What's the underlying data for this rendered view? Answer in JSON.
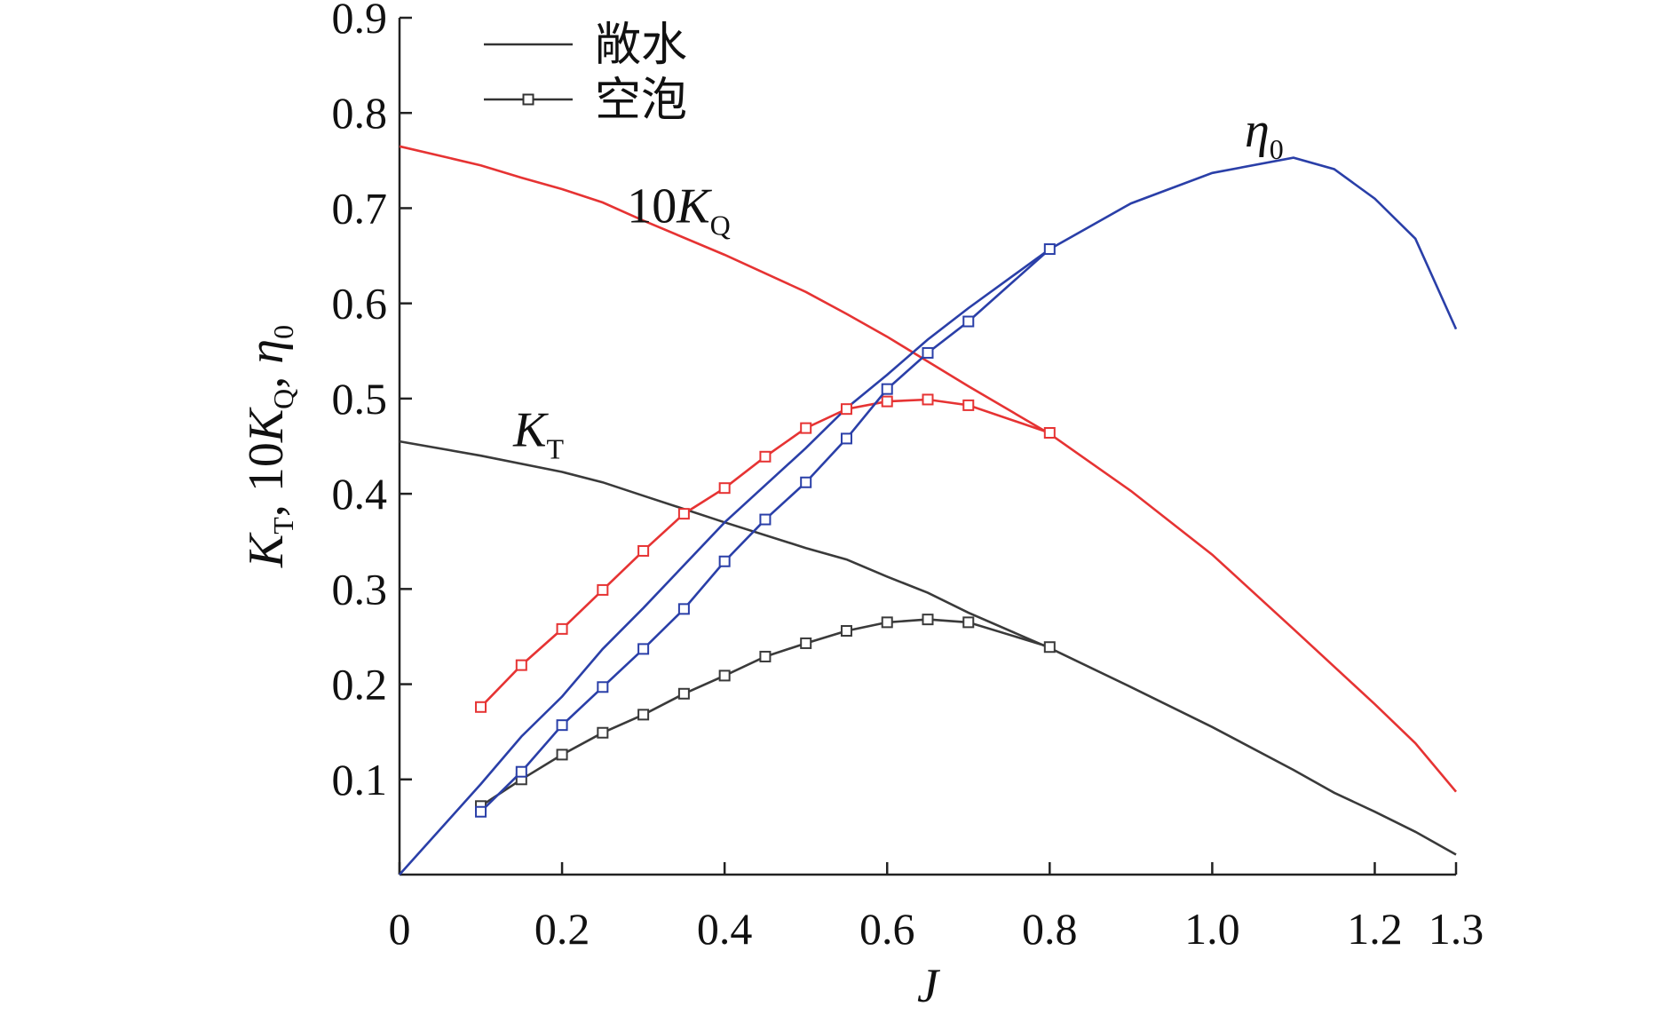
{
  "chart_data": {
    "type": "line",
    "xlabel": "J",
    "ylabel": {
      "parts": [
        "K",
        "T",
        ", 10",
        "K",
        "Q",
        ", ",
        "η",
        "0"
      ]
    },
    "xlim": [
      0,
      1.3
    ],
    "ylim": [
      0,
      0.9
    ],
    "x_ticks": [
      {
        "value": 0,
        "label": "0"
      },
      {
        "value": 0.2,
        "label": "0.2"
      },
      {
        "value": 0.4,
        "label": "0.4"
      },
      {
        "value": 0.6,
        "label": "0.6"
      },
      {
        "value": 0.8,
        "label": "0.8"
      },
      {
        "value": 1.0,
        "label": "1.0"
      },
      {
        "value": 1.2,
        "label": "1.2"
      },
      {
        "value": 1.3,
        "label": "1.3"
      }
    ],
    "y_ticks": [
      {
        "value": 0.1,
        "label": "0.1"
      },
      {
        "value": 0.2,
        "label": "0.2"
      },
      {
        "value": 0.3,
        "label": "0.3"
      },
      {
        "value": 0.4,
        "label": "0.4"
      },
      {
        "value": 0.5,
        "label": "0.5"
      },
      {
        "value": 0.6,
        "label": "0.6"
      },
      {
        "value": 0.7,
        "label": "0.7"
      },
      {
        "value": 0.8,
        "label": "0.8"
      },
      {
        "value": 0.9,
        "label": "0.9"
      }
    ],
    "grid": false,
    "legend": {
      "position": "top-left",
      "entries": [
        {
          "label": "敞水",
          "marker": "none",
          "color": "#333333"
        },
        {
          "label": "空泡",
          "marker": "square",
          "color": "#333333"
        }
      ]
    },
    "annotations": [
      {
        "id": "eta0",
        "parts": [
          "η",
          "0"
        ],
        "x": 1.04,
        "y": 0.765
      },
      {
        "id": "kq",
        "parts": [
          "10",
          "K",
          "Q"
        ],
        "x": 0.28,
        "y": 0.685
      },
      {
        "id": "kt",
        "parts": [
          "K",
          "T"
        ],
        "x": 0.14,
        "y": 0.45
      }
    ],
    "series": [
      {
        "key": "kt_open",
        "color": "#3a3a3a",
        "marker": "none",
        "x": [
          0,
          0.1,
          0.2,
          0.25,
          0.3,
          0.4,
          0.5,
          0.55,
          0.6,
          0.65,
          0.7,
          0.8,
          0.9,
          1.0,
          1.1,
          1.15,
          1.2,
          1.25,
          1.3
        ],
        "y": [
          0.455,
          0.44,
          0.423,
          0.412,
          0.398,
          0.37,
          0.343,
          0.331,
          0.313,
          0.296,
          0.275,
          0.238,
          0.197,
          0.155,
          0.11,
          0.086,
          0.066,
          0.045,
          0.021
        ]
      },
      {
        "key": "kq10_open",
        "color": "#e63333",
        "marker": "none",
        "x": [
          0,
          0.1,
          0.15,
          0.2,
          0.25,
          0.3,
          0.4,
          0.5,
          0.55,
          0.6,
          0.65,
          0.7,
          0.8,
          0.9,
          1.0,
          1.1,
          1.2,
          1.25,
          1.3
        ],
        "y": [
          0.765,
          0.745,
          0.732,
          0.72,
          0.706,
          0.687,
          0.651,
          0.612,
          0.589,
          0.565,
          0.539,
          0.513,
          0.463,
          0.403,
          0.336,
          0.258,
          0.179,
          0.138,
          0.087
        ]
      },
      {
        "key": "eta0_open",
        "color": "#2a3fa8",
        "marker": "none",
        "x": [
          0,
          0.1,
          0.15,
          0.2,
          0.25,
          0.3,
          0.4,
          0.5,
          0.55,
          0.6,
          0.65,
          0.7,
          0.8,
          0.9,
          1.0,
          1.1,
          1.15,
          1.2,
          1.25,
          1.3
        ],
        "y": [
          0,
          0.095,
          0.145,
          0.187,
          0.237,
          0.28,
          0.37,
          0.448,
          0.49,
          0.525,
          0.562,
          0.595,
          0.657,
          0.705,
          0.737,
          0.753,
          0.741,
          0.71,
          0.668,
          0.573
        ]
      },
      {
        "key": "kt_cav",
        "color": "#3a3a3a",
        "marker": "square",
        "x": [
          0.1,
          0.15,
          0.2,
          0.25,
          0.3,
          0.35,
          0.4,
          0.45,
          0.5,
          0.55,
          0.6,
          0.65,
          0.7,
          0.8
        ],
        "y": [
          0.072,
          0.1,
          0.126,
          0.149,
          0.168,
          0.19,
          0.209,
          0.229,
          0.243,
          0.256,
          0.265,
          0.268,
          0.265,
          0.239
        ]
      },
      {
        "key": "kq10_cav",
        "color": "#e63333",
        "marker": "square",
        "x": [
          0.1,
          0.15,
          0.2,
          0.25,
          0.3,
          0.35,
          0.4,
          0.45,
          0.5,
          0.55,
          0.6,
          0.65,
          0.7,
          0.8
        ],
        "y": [
          0.176,
          0.22,
          0.258,
          0.299,
          0.34,
          0.379,
          0.406,
          0.439,
          0.469,
          0.489,
          0.497,
          0.499,
          0.493,
          0.464
        ]
      },
      {
        "key": "eta0_cav",
        "color": "#2a3fa8",
        "marker": "square",
        "x": [
          0.1,
          0.15,
          0.2,
          0.25,
          0.3,
          0.35,
          0.4,
          0.45,
          0.5,
          0.55,
          0.6,
          0.65,
          0.7,
          0.8
        ],
        "y": [
          0.066,
          0.108,
          0.157,
          0.197,
          0.237,
          0.279,
          0.329,
          0.373,
          0.412,
          0.458,
          0.51,
          0.548,
          0.581,
          0.657
        ]
      }
    ]
  }
}
